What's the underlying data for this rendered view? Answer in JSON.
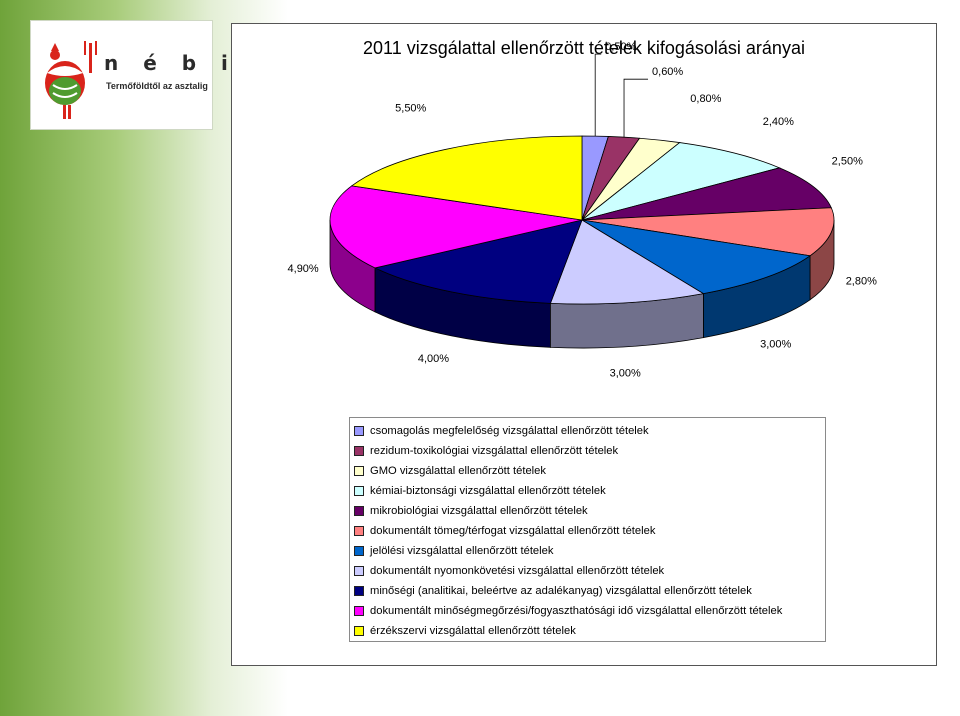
{
  "logo": {
    "brand": "n é b i h",
    "tagline": "Termőföldtől az asztalig"
  },
  "chart_data": {
    "type": "pie",
    "title": "2011 vizsgálattal ellenőrzött tételek kifogásolási arányai",
    "legend_position": "bottom",
    "series": [
      {
        "name": "csomagolás megfelelőség vizsgálattal ellenőrzött tételek",
        "value": 0.5,
        "label": "0,50%",
        "color": "#9999ff"
      },
      {
        "name": "rezidum-toxikológiai vizsgálattal ellenőrzött tételek",
        "value": 0.6,
        "label": "0,60%",
        "color": "#993366"
      },
      {
        "name": "GMO vizsgálattal ellenőrzött tételek",
        "value": 0.8,
        "label": "0,80%",
        "color": "#ffffcc"
      },
      {
        "name": "kémiai-biztonsági vizsgálattal ellenőrzött tételek",
        "value": 2.4,
        "label": "2,40%",
        "color": "#ccffff"
      },
      {
        "name": "mikrobiológiai vizsgálattal ellenőrzött tételek",
        "value": 2.5,
        "label": "2,50%",
        "color": "#660066"
      },
      {
        "name": "dokumentált tömeg/térfogat vizsgálattal ellenőrzött tételek",
        "value": 2.8,
        "label": "2,80%",
        "color": "#ff8080"
      },
      {
        "name": "jelölési vizsgálattal ellenőrzött tételek",
        "value": 3.0,
        "label": "3,00%",
        "color": "#0066cc"
      },
      {
        "name": "dokumentált nyomonkövetési vizsgálattal ellenőrzött tételek",
        "value": 3.0,
        "label": "3,00%",
        "color": "#ccccff"
      },
      {
        "name": "minőségi (analitikai, beleértve az adalékanyag) vizsgálattal ellenőrzött tételek",
        "value": 4.0,
        "label": "4,00%",
        "color": "#000080"
      },
      {
        "name": "dokumentált minőségmegőrzési/fogyaszthatósági idő  vizsgálattal ellenőrzött tételek",
        "value": 4.9,
        "label": "4,90%",
        "color": "#ff00ff"
      },
      {
        "name": "érzékszervi vizsgálattal ellenőrzött tételek",
        "value": 5.5,
        "label": "5,50%",
        "color": "#ffff00"
      }
    ]
  }
}
